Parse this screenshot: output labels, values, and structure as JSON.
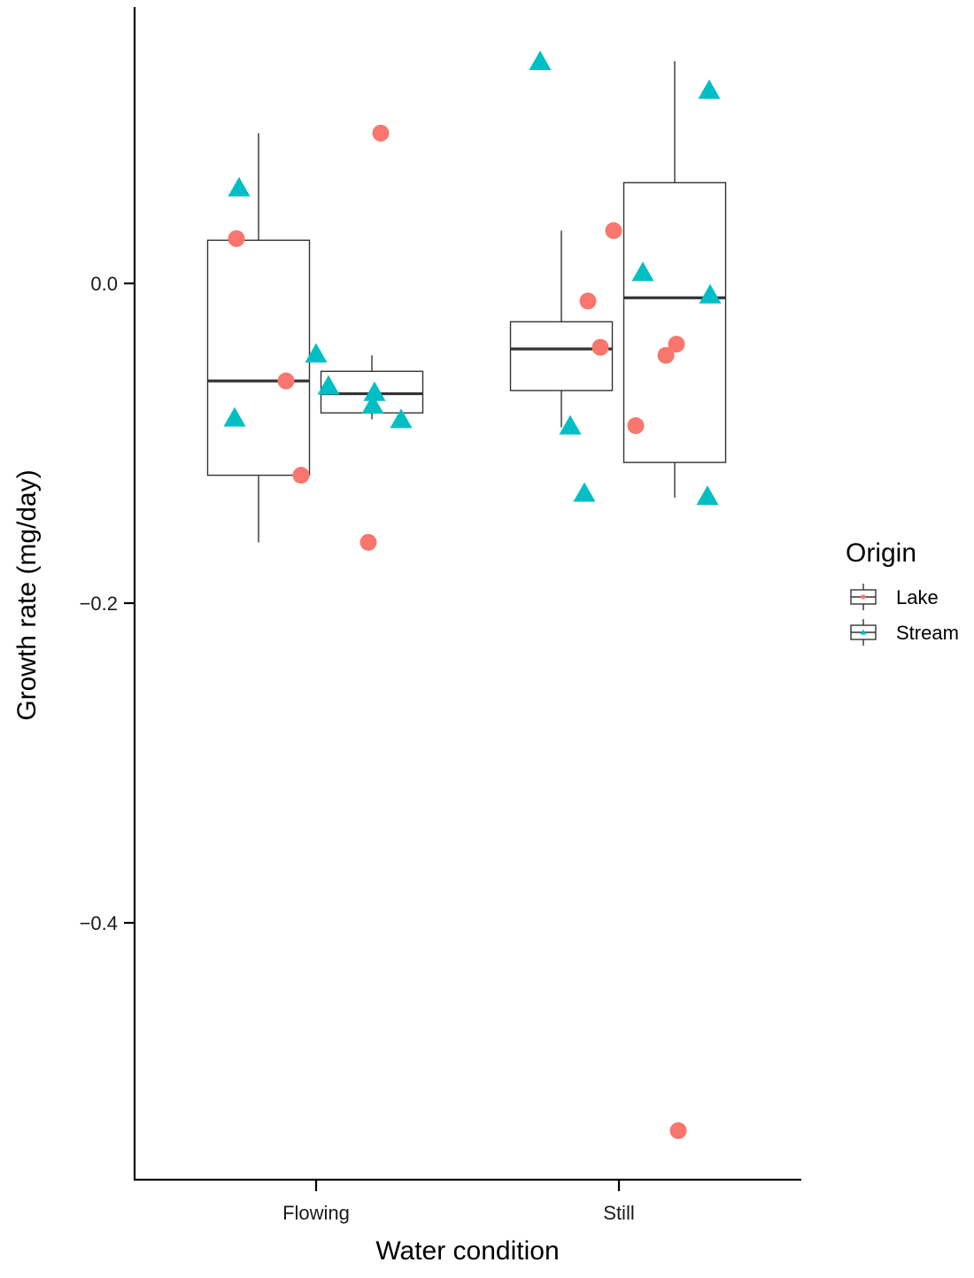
{
  "chart_data": {
    "type": "box",
    "xlabel": "Water condition",
    "ylabel": "Growth rate (mg/day)",
    "categories": [
      "Flowing",
      "Still"
    ],
    "ylim": [
      -0.56,
      0.18
    ],
    "yticks": [
      0.0,
      -0.2,
      -0.4
    ],
    "ytick_labels": [
      "0.0",
      "−0.2",
      "−0.4"
    ],
    "grid": false,
    "legend": {
      "title": "Origin",
      "position": "right",
      "entries": [
        {
          "name": "Lake",
          "color": "#F8766D",
          "shape": "circle"
        },
        {
          "name": "Stream",
          "color": "#00BFC4",
          "shape": "triangle"
        }
      ]
    },
    "series": [
      {
        "name": "Lake",
        "color": "#F8766D",
        "shape": "circle",
        "boxes": [
          {
            "category": "Flowing",
            "lower_whisker": -0.162,
            "q1": -0.12,
            "median": -0.061,
            "q3": 0.027,
            "upper_whisker": 0.094
          },
          {
            "category": "Still",
            "lower_whisker": -0.09,
            "q1": -0.067,
            "median": -0.041,
            "q3": -0.024,
            "upper_whisker": 0.033
          }
        ],
        "points": [
          {
            "category": "Flowing",
            "y": 0.028
          },
          {
            "category": "Flowing",
            "y": -0.061
          },
          {
            "category": "Flowing",
            "y": -0.12
          },
          {
            "category": "Flowing",
            "y": -0.162
          },
          {
            "category": "Flowing",
            "y": 0.094
          },
          {
            "category": "Still",
            "y": 0.033
          },
          {
            "category": "Still",
            "y": -0.011
          },
          {
            "category": "Still",
            "y": -0.04
          },
          {
            "category": "Still",
            "y": -0.089
          },
          {
            "category": "Still",
            "y": -0.045
          },
          {
            "category": "Still",
            "y": -0.038
          },
          {
            "category": "Still",
            "y": -0.53
          }
        ]
      },
      {
        "name": "Stream",
        "color": "#00BFC4",
        "shape": "triangle",
        "boxes": [
          {
            "category": "Flowing",
            "lower_whisker": -0.085,
            "q1": -0.081,
            "median": -0.069,
            "q3": -0.055,
            "upper_whisker": -0.045
          },
          {
            "category": "Still",
            "lower_whisker": -0.134,
            "q1": -0.112,
            "median": -0.009,
            "q3": 0.063,
            "upper_whisker": 0.139
          }
        ],
        "points": [
          {
            "category": "Flowing",
            "y": 0.06
          },
          {
            "category": "Flowing",
            "y": -0.084
          },
          {
            "category": "Flowing",
            "y": -0.044
          },
          {
            "category": "Flowing",
            "y": -0.064
          },
          {
            "category": "Flowing",
            "y": -0.068
          },
          {
            "category": "Flowing",
            "y": -0.076
          },
          {
            "category": "Flowing",
            "y": -0.085
          },
          {
            "category": "Still",
            "y": 0.139
          },
          {
            "category": "Still",
            "y": -0.089
          },
          {
            "category": "Still",
            "y": -0.131
          },
          {
            "category": "Still",
            "y": 0.007
          },
          {
            "category": "Still",
            "y": 0.121
          },
          {
            "category": "Still",
            "y": -0.007
          },
          {
            "category": "Still",
            "y": -0.133
          }
        ]
      }
    ]
  }
}
